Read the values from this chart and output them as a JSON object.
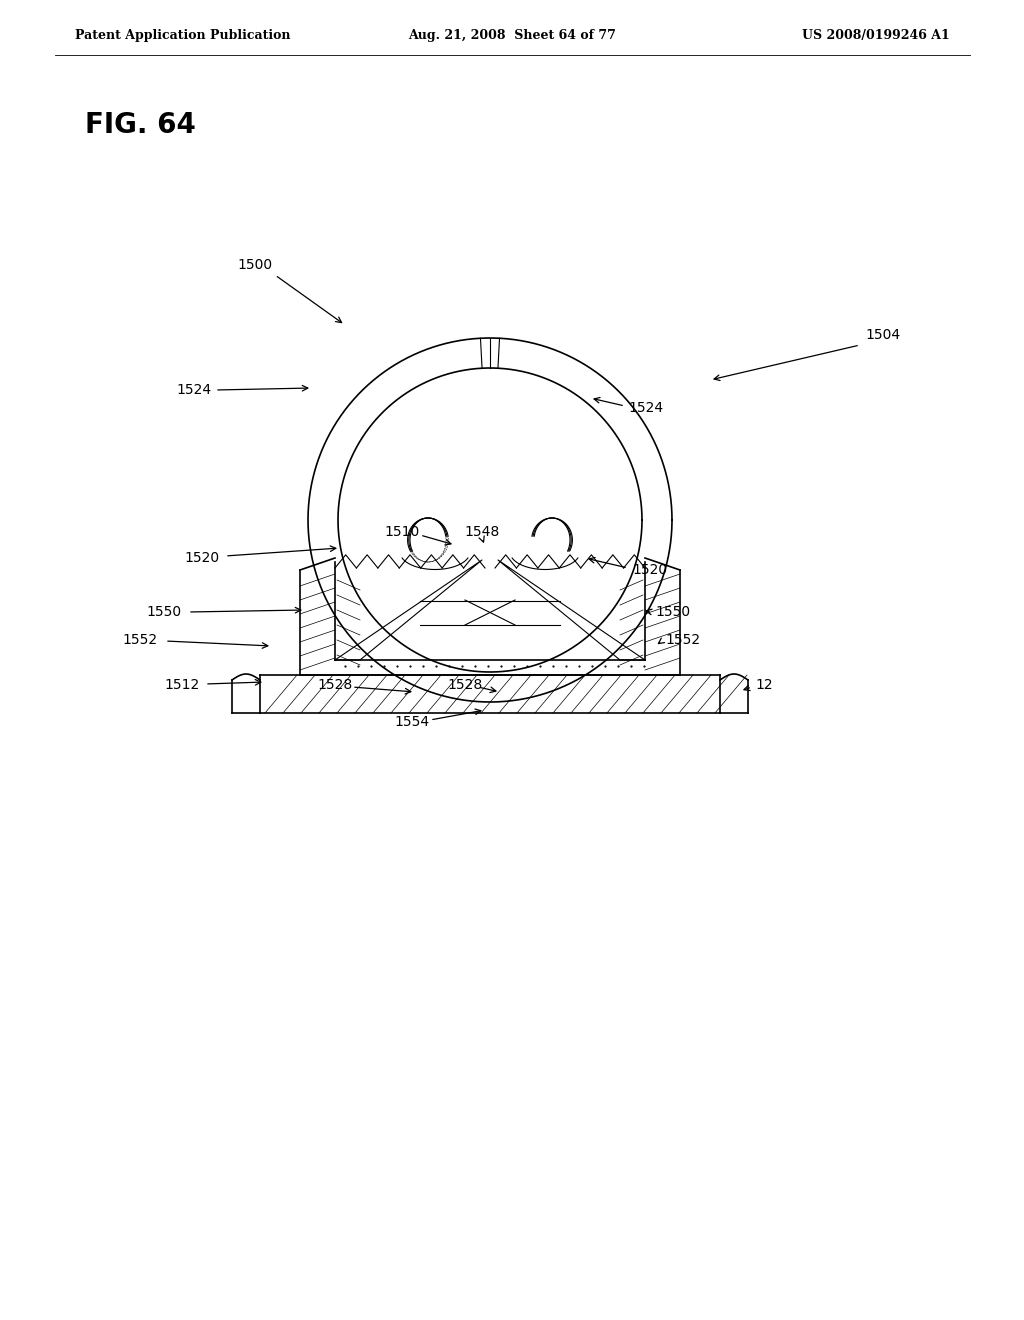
{
  "bg_color": "#ffffff",
  "header_left": "Patent Application Publication",
  "header_mid": "Aug. 21, 2008  Sheet 64 of 77",
  "header_right": "US 2008/0199246 A1",
  "fig_label": "FIG. 64"
}
